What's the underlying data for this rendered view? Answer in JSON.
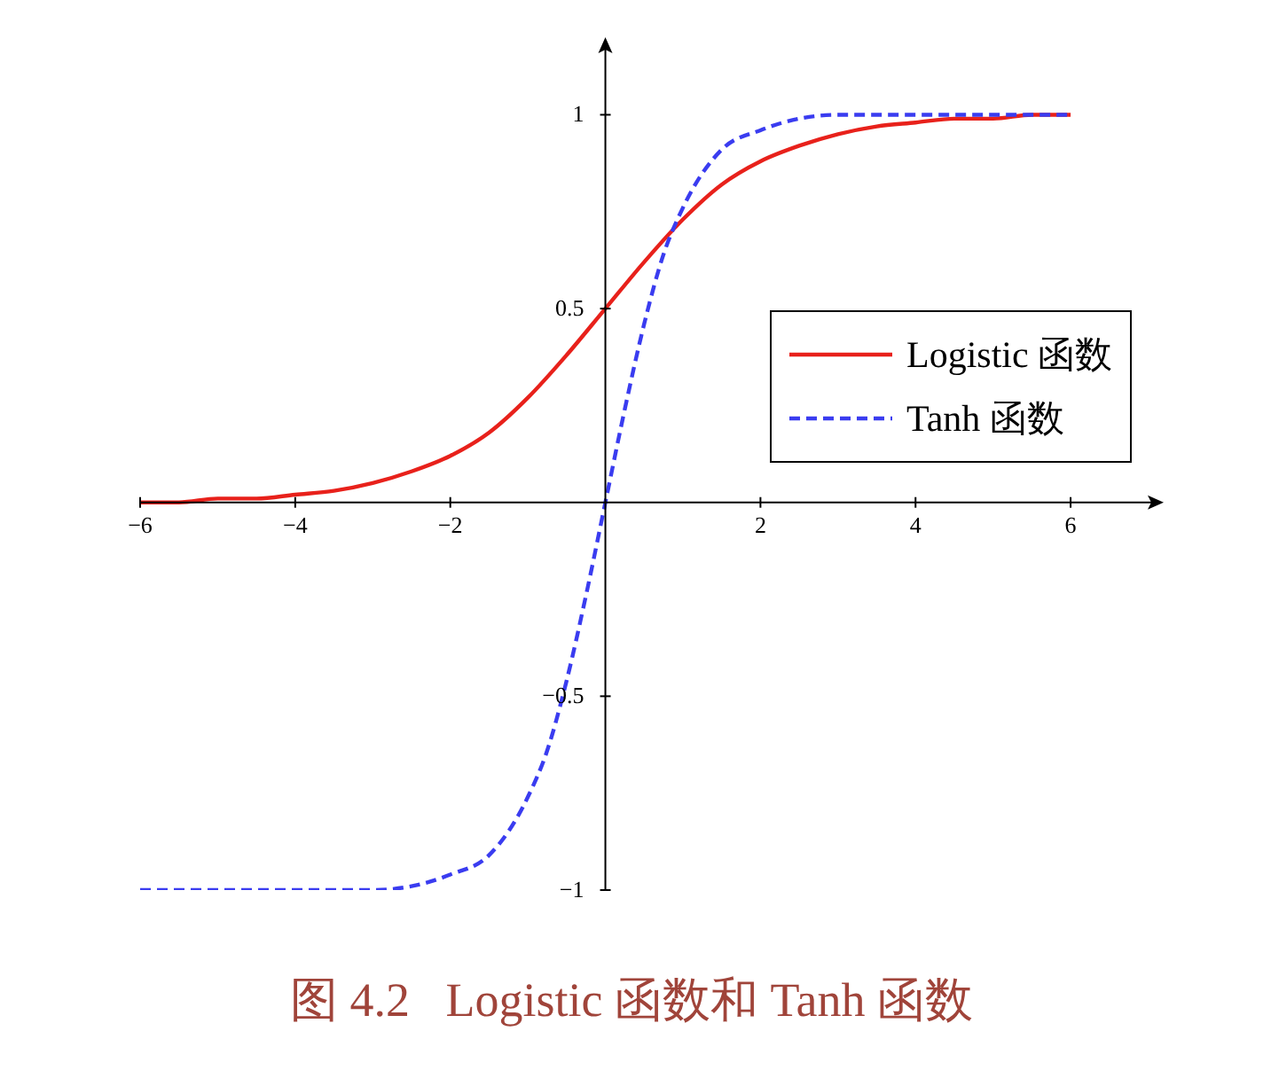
{
  "chart_data": {
    "type": "line",
    "title": "图 4.2   Logistic 函数和 Tanh 函数",
    "xlim": [
      -6,
      7.2
    ],
    "ylim": [
      -1,
      1.2
    ],
    "xticks": [
      {
        "value": -6,
        "label": "−6"
      },
      {
        "value": -4,
        "label": "−4"
      },
      {
        "value": -2,
        "label": "−2"
      },
      2,
      4,
      6
    ],
    "yticks": [
      {
        "value": -1,
        "label": "−1"
      },
      {
        "value": -0.5,
        "label": "−0.5"
      },
      0.5,
      1
    ],
    "legend": "right",
    "series": [
      {
        "name": "Logistic 函数",
        "color": "#e8211b",
        "line_style": "solid",
        "x": [
          -6,
          -5.5,
          -5,
          -4.5,
          -4,
          -3.5,
          -3,
          -2.5,
          -2,
          -1.5,
          -1,
          -0.5,
          0,
          0.5,
          1,
          1.5,
          2,
          2.5,
          3,
          3.5,
          4,
          4.5,
          5,
          5.5,
          6
        ],
        "values": [
          0.0,
          0.0,
          0.01,
          0.01,
          0.02,
          0.03,
          0.05,
          0.08,
          0.12,
          0.18,
          0.27,
          0.38,
          0.5,
          0.62,
          0.73,
          0.82,
          0.88,
          0.92,
          0.95,
          0.97,
          0.98,
          0.99,
          0.99,
          1.0,
          1.0
        ]
      },
      {
        "name": "Tanh 函数",
        "color": "#3a3cf0",
        "line_style": "dashed",
        "x": [
          -6,
          -5,
          -4,
          -3,
          -2.5,
          -2,
          -1.5,
          -1,
          -0.75,
          -0.5,
          -0.25,
          0,
          0.25,
          0.5,
          0.75,
          1,
          1.5,
          2,
          2.5,
          3,
          4,
          5,
          6
        ],
        "values": [
          -1,
          -1,
          -1,
          -1,
          -0.99,
          -0.96,
          -0.91,
          -0.76,
          -0.64,
          -0.46,
          -0.24,
          0,
          0.24,
          0.46,
          0.64,
          0.76,
          0.91,
          0.96,
          0.99,
          1,
          1,
          1,
          1
        ]
      }
    ]
  }
}
